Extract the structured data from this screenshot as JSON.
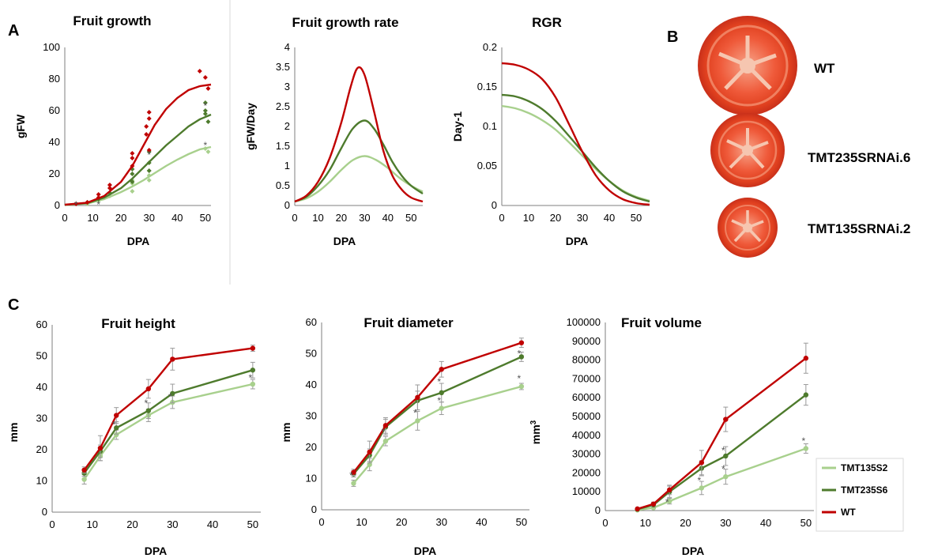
{
  "panel_labels": {
    "a": "A",
    "b": "B",
    "c": "C"
  },
  "colors": {
    "WT": "#c00000",
    "TMT235S6": "#4e7b2d",
    "TMT135S2": "#a8d08d",
    "axis": "#7f7f7f",
    "divider": "#d9d9d9",
    "star": "#555555"
  },
  "legend": [
    {
      "name": "TMT135S2",
      "color": "#a8d08d"
    },
    {
      "name": "TMT235S6",
      "color": "#4e7b2d"
    },
    {
      "name": "WT",
      "color": "#c00000"
    }
  ],
  "fruit_images": [
    {
      "label": "WT",
      "icon": "tomato-slice-large"
    },
    {
      "label": "TMT235SRNAi.6",
      "icon": "tomato-slice-medium"
    },
    {
      "label": "TMT135SRNAi.2",
      "icon": "tomato-slice-small"
    }
  ],
  "chart_data": [
    {
      "id": "growth",
      "type": "scatter",
      "title": "Fruit growth",
      "xlabel": "DPA",
      "ylabel": "gFW",
      "xlim": [
        0,
        52
      ],
      "ylim": [
        0,
        100
      ],
      "xticks": [
        0,
        10,
        20,
        30,
        40,
        50
      ],
      "yticks": [
        0,
        20,
        40,
        60,
        80,
        100
      ],
      "series": [
        {
          "name": "WT",
          "color": "#c00000",
          "points": [
            [
              4,
              1
            ],
            [
              8,
              2
            ],
            [
              12,
              5
            ],
            [
              12,
              7
            ],
            [
              16,
              11
            ],
            [
              16,
              13
            ],
            [
              24,
              25
            ],
            [
              24,
              30
            ],
            [
              24,
              33
            ],
            [
              29,
              45
            ],
            [
              29,
              50
            ],
            [
              30,
              55
            ],
            [
              30,
              59
            ],
            [
              30,
              35
            ],
            [
              48,
              85
            ],
            [
              50,
              81
            ],
            [
              51,
              74
            ]
          ],
          "fit": [
            [
              0,
              0.5
            ],
            [
              8,
              1.8
            ],
            [
              14,
              6
            ],
            [
              20,
              15
            ],
            [
              24,
              25
            ],
            [
              28,
              38
            ],
            [
              32,
              51
            ],
            [
              36,
              61
            ],
            [
              40,
              68
            ],
            [
              44,
              73
            ],
            [
              48,
              75.5
            ],
            [
              52,
              76.5
            ]
          ]
        },
        {
          "name": "TMT235S6",
          "color": "#4e7b2d",
          "points": [
            [
              8,
              2
            ],
            [
              12,
              4
            ],
            [
              16,
              8
            ],
            [
              24,
              15
            ],
            [
              24,
              20
            ],
            [
              24,
              23
            ],
            [
              30,
              22
            ],
            [
              30,
              27
            ],
            [
              30,
              34
            ],
            [
              50,
              58
            ],
            [
              50,
              65
            ],
            [
              50,
              60
            ],
            [
              51,
              53
            ]
          ],
          "fit": [
            [
              0,
              0.4
            ],
            [
              8,
              1.5
            ],
            [
              14,
              5
            ],
            [
              20,
              11
            ],
            [
              24,
              17
            ],
            [
              28,
              24
            ],
            [
              32,
              31
            ],
            [
              36,
              38
            ],
            [
              40,
              44
            ],
            [
              44,
              50
            ],
            [
              48,
              54.5
            ],
            [
              52,
              57.5
            ]
          ]
        },
        {
          "name": "TMT135S2",
          "color": "#a8d08d",
          "points": [
            [
              8,
              1
            ],
            [
              12,
              3
            ],
            [
              16,
              6
            ],
            [
              24,
              9
            ],
            [
              24,
              14
            ],
            [
              24,
              16
            ],
            [
              30,
              16
            ],
            [
              30,
              19
            ],
            [
              30,
              22
            ],
            [
              50,
              36
            ],
            [
              51,
              34
            ]
          ],
          "fit": [
            [
              0,
              0.3
            ],
            [
              8,
              1.2
            ],
            [
              14,
              4
            ],
            [
              20,
              8.5
            ],
            [
              24,
              12
            ],
            [
              28,
              16
            ],
            [
              32,
              20.5
            ],
            [
              36,
              25
            ],
            [
              40,
              29
            ],
            [
              44,
              32.5
            ],
            [
              48,
              35.5
            ],
            [
              52,
              37
            ]
          ]
        }
      ],
      "stars": [
        [
          4,
          0.5
        ],
        [
          12,
          0.5
        ],
        [
          50,
          38
        ],
        [
          30,
          32
        ],
        [
          50,
          63
        ]
      ]
    },
    {
      "id": "rate",
      "type": "line",
      "title": "Fruit growth rate",
      "xlabel": "DPA",
      "ylabel": "gFW/Day",
      "xlim": [
        0,
        55
      ],
      "ylim": [
        0,
        4
      ],
      "xticks": [
        0,
        10,
        20,
        30,
        40,
        50
      ],
      "yticks": [
        0,
        0.5,
        1,
        1.5,
        2,
        2.5,
        3,
        3.5,
        4
      ],
      "series": [
        {
          "name": "WT",
          "color": "#c00000",
          "points": [
            [
              0,
              0.1
            ],
            [
              5,
              0.25
            ],
            [
              10,
              0.6
            ],
            [
              15,
              1.2
            ],
            [
              20,
              2.1
            ],
            [
              24,
              3.0
            ],
            [
              27,
              3.48
            ],
            [
              30,
              3.3
            ],
            [
              34,
              2.4
            ],
            [
              38,
              1.4
            ],
            [
              42,
              0.75
            ],
            [
              46,
              0.4
            ],
            [
              50,
              0.2
            ],
            [
              55,
              0.1
            ]
          ]
        },
        {
          "name": "TMT235S6",
          "color": "#4e7b2d",
          "points": [
            [
              0,
              0.1
            ],
            [
              5,
              0.22
            ],
            [
              10,
              0.5
            ],
            [
              15,
              0.9
            ],
            [
              20,
              1.45
            ],
            [
              25,
              1.95
            ],
            [
              30,
              2.15
            ],
            [
              34,
              1.95
            ],
            [
              38,
              1.55
            ],
            [
              42,
              1.1
            ],
            [
              46,
              0.75
            ],
            [
              50,
              0.5
            ],
            [
              55,
              0.3
            ]
          ]
        },
        {
          "name": "TMT135S2",
          "color": "#a8d08d",
          "points": [
            [
              0,
              0.1
            ],
            [
              5,
              0.18
            ],
            [
              10,
              0.35
            ],
            [
              15,
              0.6
            ],
            [
              20,
              0.9
            ],
            [
              25,
              1.15
            ],
            [
              30,
              1.25
            ],
            [
              35,
              1.15
            ],
            [
              40,
              0.95
            ],
            [
              45,
              0.7
            ],
            [
              50,
              0.5
            ],
            [
              55,
              0.35
            ]
          ]
        }
      ]
    },
    {
      "id": "rgr",
      "type": "line",
      "title": "RGR",
      "xlabel": "DPA",
      "ylabel": "Day-1",
      "xlim": [
        0,
        55
      ],
      "ylim": [
        0,
        0.2
      ],
      "xticks": [
        0,
        10,
        20,
        30,
        40,
        50
      ],
      "yticks": [
        0,
        0.05,
        0.1,
        0.15,
        0.2
      ],
      "ytick_labels": [
        "0",
        "0.05",
        "0.1",
        "0.15",
        "0.2"
      ],
      "series": [
        {
          "name": "WT",
          "color": "#c00000",
          "points": [
            [
              0,
              0.18
            ],
            [
              5,
              0.178
            ],
            [
              10,
              0.172
            ],
            [
              15,
              0.16
            ],
            [
              20,
              0.137
            ],
            [
              25,
              0.103
            ],
            [
              30,
              0.068
            ],
            [
              35,
              0.038
            ],
            [
              40,
              0.019
            ],
            [
              45,
              0.008
            ],
            [
              50,
              0.003
            ],
            [
              55,
              0.001
            ]
          ]
        },
        {
          "name": "TMT235S6",
          "color": "#4e7b2d",
          "points": [
            [
              0,
              0.14
            ],
            [
              5,
              0.138
            ],
            [
              10,
              0.132
            ],
            [
              15,
              0.122
            ],
            [
              20,
              0.107
            ],
            [
              25,
              0.088
            ],
            [
              30,
              0.068
            ],
            [
              35,
              0.048
            ],
            [
              40,
              0.031
            ],
            [
              45,
              0.018
            ],
            [
              50,
              0.01
            ],
            [
              55,
              0.005
            ]
          ]
        },
        {
          "name": "TMT135S2",
          "color": "#a8d08d",
          "points": [
            [
              0,
              0.126
            ],
            [
              5,
              0.123
            ],
            [
              10,
              0.117
            ],
            [
              15,
              0.108
            ],
            [
              20,
              0.096
            ],
            [
              25,
              0.08
            ],
            [
              30,
              0.063
            ],
            [
              35,
              0.046
            ],
            [
              40,
              0.031
            ],
            [
              45,
              0.019
            ],
            [
              50,
              0.011
            ],
            [
              55,
              0.006
            ]
          ]
        }
      ]
    },
    {
      "id": "height",
      "type": "line",
      "title": "Fruit height",
      "xlabel": "DPA",
      "ylabel": "mm",
      "xlim": [
        0,
        52
      ],
      "ylim": [
        0,
        60
      ],
      "xticks": [
        0,
        10,
        20,
        30,
        40,
        50
      ],
      "yticks": [
        0,
        10,
        20,
        30,
        40,
        50,
        60
      ],
      "x": [
        8,
        12,
        16,
        24,
        30,
        50
      ],
      "series": [
        {
          "name": "TMT135S2",
          "color": "#a8d08d",
          "values": [
            10.5,
            18,
            24.8,
            31,
            35.2,
            41
          ],
          "err": [
            1.5,
            1.5,
            1.5,
            2,
            2,
            1.5
          ]
        },
        {
          "name": "TMT235S6",
          "color": "#4e7b2d",
          "values": [
            12.5,
            19.5,
            27,
            32.5,
            38,
            45.5
          ],
          "err": [
            1,
            2,
            2,
            2.5,
            3,
            2.5
          ]
        },
        {
          "name": "WT",
          "color": "#c00000",
          "values": [
            13.5,
            20.5,
            31,
            39.5,
            49,
            52.5
          ],
          "err": [
            1,
            4,
            2.5,
            3,
            3.5,
            1
          ]
        }
      ],
      "stars": [
        [
          16,
          28
        ],
        [
          24,
          35
        ],
        [
          30,
          37
        ],
        [
          50,
          43
        ]
      ]
    },
    {
      "id": "diameter",
      "type": "line",
      "title": "Fruit diameter",
      "xlabel": "DPA",
      "ylabel": "mm",
      "xlim": [
        0,
        52
      ],
      "ylim": [
        0,
        60
      ],
      "xticks": [
        0,
        10,
        20,
        30,
        40,
        50
      ],
      "yticks": [
        0,
        10,
        20,
        30,
        40,
        50,
        60
      ],
      "x": [
        8,
        12,
        16,
        24,
        30,
        50
      ],
      "series": [
        {
          "name": "TMT135S2",
          "color": "#a8d08d",
          "values": [
            8.5,
            14.5,
            22,
            28.5,
            32.5,
            39.5
          ],
          "err": [
            1,
            2,
            1.5,
            3,
            2,
            1
          ]
        },
        {
          "name": "TMT235S6",
          "color": "#4e7b2d",
          "values": [
            11.5,
            17.5,
            26.5,
            35,
            37.5,
            49
          ],
          "err": [
            1,
            2,
            2.5,
            3,
            3,
            1.5
          ]
        },
        {
          "name": "WT",
          "color": "#c00000",
          "values": [
            12,
            18.5,
            27,
            36,
            45,
            53.5
          ],
          "err": [
            1,
            3.5,
            2.5,
            4,
            2.5,
            1.5
          ]
        }
      ],
      "stars": [
        [
          8,
          11
        ],
        [
          16,
          25
        ],
        [
          24,
          31
        ],
        [
          30,
          35
        ],
        [
          30,
          41
        ],
        [
          50,
          42
        ],
        [
          50,
          50
        ]
      ]
    },
    {
      "id": "volume",
      "type": "line",
      "title": "Fruit volume",
      "xlabel": "DPA",
      "ylabel": "mm",
      "ylabel_sup": "3",
      "xlim": [
        0,
        52
      ],
      "ylim": [
        0,
        100000
      ],
      "xticks": [
        0,
        10,
        20,
        30,
        40,
        50
      ],
      "yticks": [
        0,
        10000,
        20000,
        30000,
        40000,
        50000,
        60000,
        70000,
        80000,
        90000,
        100000
      ],
      "x": [
        8,
        12,
        16,
        24,
        30,
        50
      ],
      "series": [
        {
          "name": "TMT135S2",
          "color": "#a8d08d",
          "values": [
            300,
            1500,
            5000,
            12000,
            18000,
            33000
          ],
          "err": [
            200,
            500,
            1500,
            3500,
            4000,
            2500
          ]
        },
        {
          "name": "TMT235S6",
          "color": "#4e7b2d",
          "values": [
            700,
            3000,
            10000,
            22500,
            29000,
            61500
          ],
          "err": [
            300,
            1000,
            3000,
            4000,
            5000,
            5500
          ]
        },
        {
          "name": "WT",
          "color": "#c00000",
          "values": [
            900,
            3500,
            11000,
            25500,
            48500,
            81000
          ],
          "err": [
            300,
            1000,
            2500,
            6500,
            6500,
            8000
          ]
        }
      ],
      "stars": [
        [
          16,
          4500
        ],
        [
          24,
          16000
        ],
        [
          30,
          22000
        ],
        [
          30,
          32000
        ],
        [
          50,
          37000
        ]
      ]
    }
  ]
}
